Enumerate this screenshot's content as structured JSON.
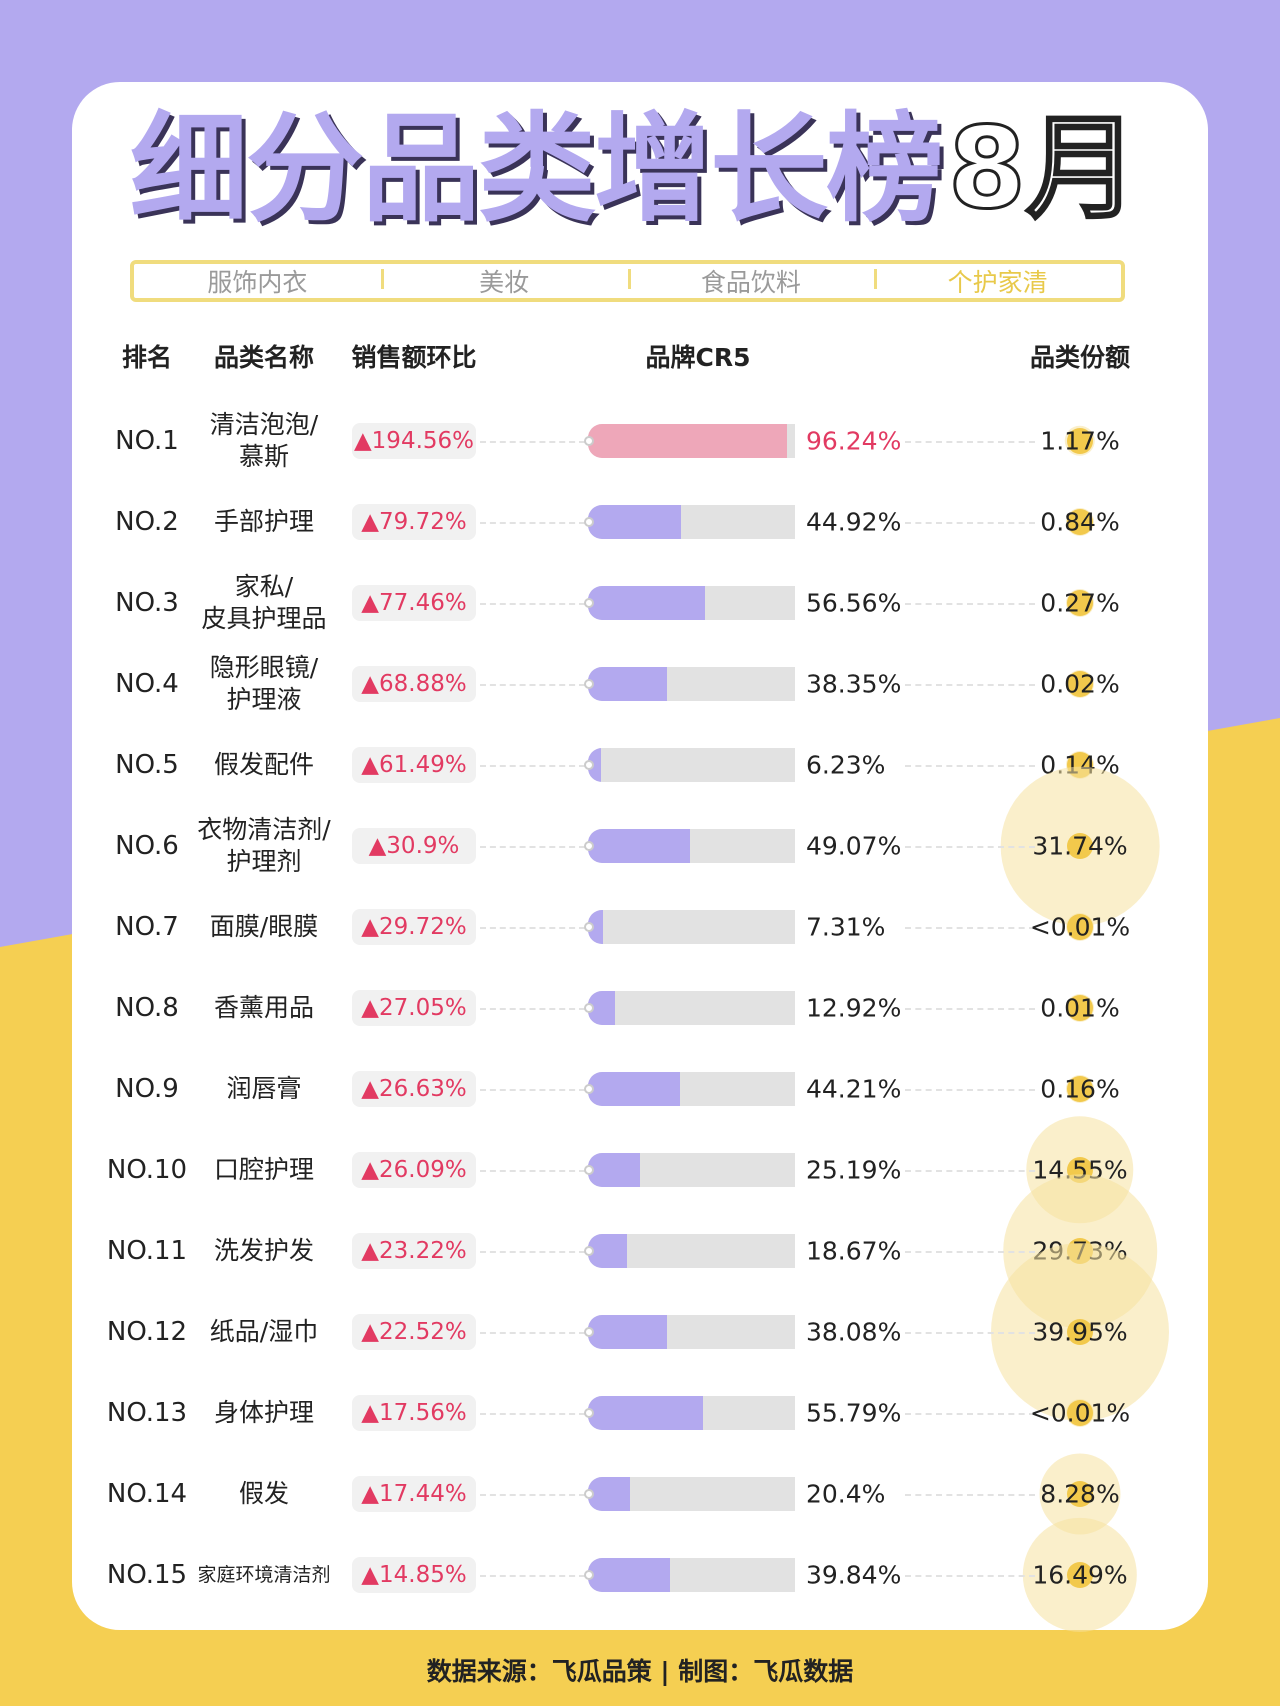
{
  "colors": {
    "background_top": "#b3a9ef",
    "background_bottom": "#f5cf52",
    "bar_fill": "#b3a9ef",
    "bar_top_fill": "#eea7b9",
    "growth_text": "#e23a62",
    "bubble": "#f5e1a0"
  },
  "title": {
    "main": "细分品类增长榜",
    "month": "8月"
  },
  "tabs": [
    {
      "label": "服饰内衣",
      "active": false
    },
    {
      "label": "美妆",
      "active": false
    },
    {
      "label": "食品饮料",
      "active": false
    },
    {
      "label": "个护家清",
      "active": true
    }
  ],
  "headers": {
    "rank": "排名",
    "name": "品类名称",
    "growth": "销售额环比",
    "cr5": "品牌CR5",
    "share": "品类份额"
  },
  "chart_data": {
    "type": "table",
    "columns": [
      "排名",
      "品类名称",
      "销售额环比",
      "品牌CR5",
      "品类份额"
    ],
    "rows": [
      {
        "rank": "NO.1",
        "name": "清洁泡泡/\n慕斯",
        "growth": "▲194.56%",
        "cr5": 96.24,
        "cr5_label": "96.24%",
        "share": 1.17,
        "share_label": "1.17%"
      },
      {
        "rank": "NO.2",
        "name": "手部护理",
        "growth": "▲79.72%",
        "cr5": 44.92,
        "cr5_label": "44.92%",
        "share": 0.84,
        "share_label": "0.84%"
      },
      {
        "rank": "NO.3",
        "name": "家私/\n皮具护理品",
        "growth": "▲77.46%",
        "cr5": 56.56,
        "cr5_label": "56.56%",
        "share": 0.27,
        "share_label": "0.27%"
      },
      {
        "rank": "NO.4",
        "name": "隐形眼镜/\n护理液",
        "growth": "▲68.88%",
        "cr5": 38.35,
        "cr5_label": "38.35%",
        "share": 0.02,
        "share_label": "0.02%"
      },
      {
        "rank": "NO.5",
        "name": "假发配件",
        "growth": "▲61.49%",
        "cr5": 6.23,
        "cr5_label": "6.23%",
        "share": 0.14,
        "share_label": "0.14%"
      },
      {
        "rank": "NO.6",
        "name": "衣物清洁剂/\n护理剂",
        "growth": "▲30.9%",
        "cr5": 49.07,
        "cr5_label": "49.07%",
        "share": 31.74,
        "share_label": "31.74%"
      },
      {
        "rank": "NO.7",
        "name": "面膜/眼膜",
        "growth": "▲29.72%",
        "cr5": 7.31,
        "cr5_label": "7.31%",
        "share": 0.005,
        "share_label": "<0.01%"
      },
      {
        "rank": "NO.8",
        "name": "香薰用品",
        "growth": "▲27.05%",
        "cr5": 12.92,
        "cr5_label": "12.92%",
        "share": 0.01,
        "share_label": "0.01%"
      },
      {
        "rank": "NO.9",
        "name": "润唇膏",
        "growth": "▲26.63%",
        "cr5": 44.21,
        "cr5_label": "44.21%",
        "share": 0.16,
        "share_label": "0.16%"
      },
      {
        "rank": "NO.10",
        "name": "口腔护理",
        "growth": "▲26.09%",
        "cr5": 25.19,
        "cr5_label": "25.19%",
        "share": 14.55,
        "share_label": "14.55%"
      },
      {
        "rank": "NO.11",
        "name": "洗发护发",
        "growth": "▲23.22%",
        "cr5": 18.67,
        "cr5_label": "18.67%",
        "share": 29.73,
        "share_label": "29.73%"
      },
      {
        "rank": "NO.12",
        "name": "纸品/湿巾",
        "growth": "▲22.52%",
        "cr5": 38.08,
        "cr5_label": "38.08%",
        "share": 39.95,
        "share_label": "39.95%"
      },
      {
        "rank": "NO.13",
        "name": "身体护理",
        "growth": "▲17.56%",
        "cr5": 55.79,
        "cr5_label": "55.79%",
        "share": 0.005,
        "share_label": "<0.01%"
      },
      {
        "rank": "NO.14",
        "name": "假发",
        "growth": "▲17.44%",
        "cr5": 20.4,
        "cr5_label": "20.4%",
        "share": 8.28,
        "share_label": "8.28%"
      },
      {
        "rank": "NO.15",
        "name": "家庭环境清洁剂",
        "growth": "▲14.85%",
        "cr5": 39.84,
        "cr5_label": "39.84%",
        "share": 16.49,
        "share_label": "16.49%"
      }
    ]
  },
  "footer": "数据来源：飞瓜品策 | 制图：飞瓜数据"
}
